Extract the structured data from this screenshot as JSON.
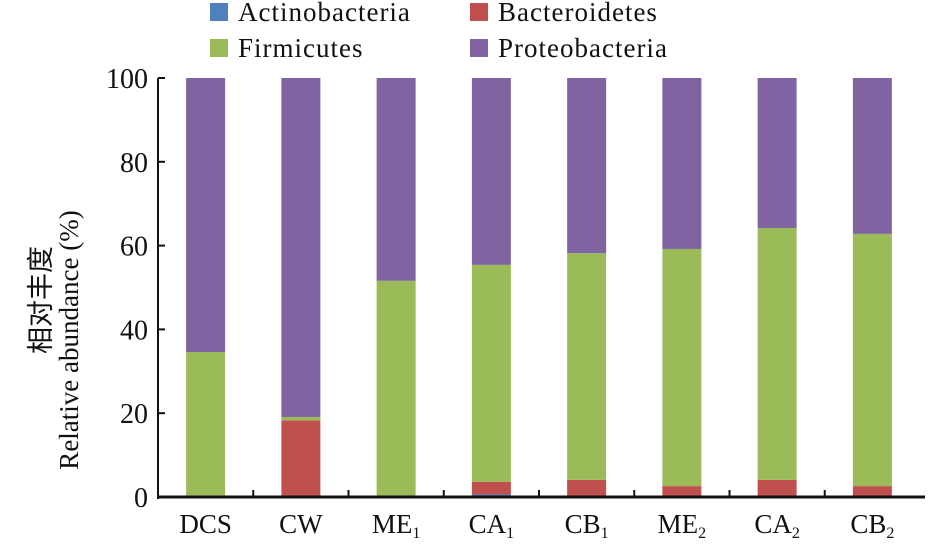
{
  "chart_data": {
    "type": "bar",
    "stacked": true,
    "title": "",
    "xlabel": "",
    "ylabel_cn": "相对丰度",
    "ylabel": "Relative abundance (%)",
    "ylim": [
      0,
      100
    ],
    "yticks": [
      0,
      20,
      40,
      60,
      80,
      100
    ],
    "legend_position": "top",
    "categories": [
      {
        "base": "DCS",
        "sub": ""
      },
      {
        "base": "CW",
        "sub": ""
      },
      {
        "base": "ME",
        "sub": "1"
      },
      {
        "base": "CA",
        "sub": "1"
      },
      {
        "base": "CB",
        "sub": "1"
      },
      {
        "base": "ME",
        "sub": "2"
      },
      {
        "base": "CA",
        "sub": "2"
      },
      {
        "base": "CB",
        "sub": "2"
      }
    ],
    "series": [
      {
        "name": "Actinobacteria",
        "color": "#4f81bd",
        "values": [
          0,
          0,
          0,
          0.6,
          0,
          0,
          0,
          0
        ]
      },
      {
        "name": "Bacteroidetes",
        "color": "#c0504d",
        "values": [
          0.4,
          18.3,
          0.3,
          3.0,
          4.1,
          2.6,
          4.1,
          2.6
        ]
      },
      {
        "name": "Firmicutes",
        "color": "#9bbb59",
        "values": [
          34.2,
          0.8,
          51.3,
          51.8,
          54.1,
          56.6,
          60.1,
          60.2
        ]
      },
      {
        "name": "Proteobacteria",
        "color": "#8064a2",
        "values": [
          65.4,
          80.9,
          48.4,
          44.6,
          41.8,
          40.8,
          35.8,
          37.2
        ]
      }
    ]
  }
}
